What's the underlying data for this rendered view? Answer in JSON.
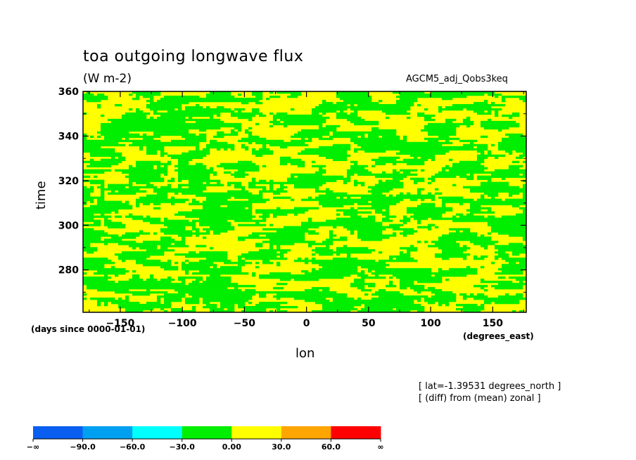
{
  "chart_data": {
    "type": "heatmap",
    "title": "toa outgoing longwave flux",
    "units": "(W m-2)",
    "run_label": "AGCM5_adj_Qobs3keq",
    "xlabel": "lon",
    "ylabel": "time",
    "x_units": "(degrees_east)",
    "y_units": "(days since 0000-01-01)",
    "xlim": [
      -180,
      177
    ],
    "ylim": [
      261,
      360
    ],
    "x_ticks": [
      -150,
      -100,
      -50,
      0,
      50,
      100,
      150
    ],
    "y_ticks": [
      280,
      300,
      320,
      340,
      360
    ],
    "annotations": [
      "[ lat=-1.39531 degrees_north ]",
      "[ (diff) from (mean) zonal ]"
    ],
    "levels": [
      "-∞",
      "-90.0",
      "-60.0",
      "-30.0",
      "0.00",
      "30.0",
      "60.0",
      "∞"
    ],
    "level_colors": [
      "#0a5ef0",
      "#00a0f0",
      "#00ffff",
      "#00ee00",
      "#ffff00",
      "#ffa500",
      "#ff0000"
    ],
    "dominant_bins": [
      "-30.0 to 0.00",
      "0.00 to 30.0"
    ]
  }
}
